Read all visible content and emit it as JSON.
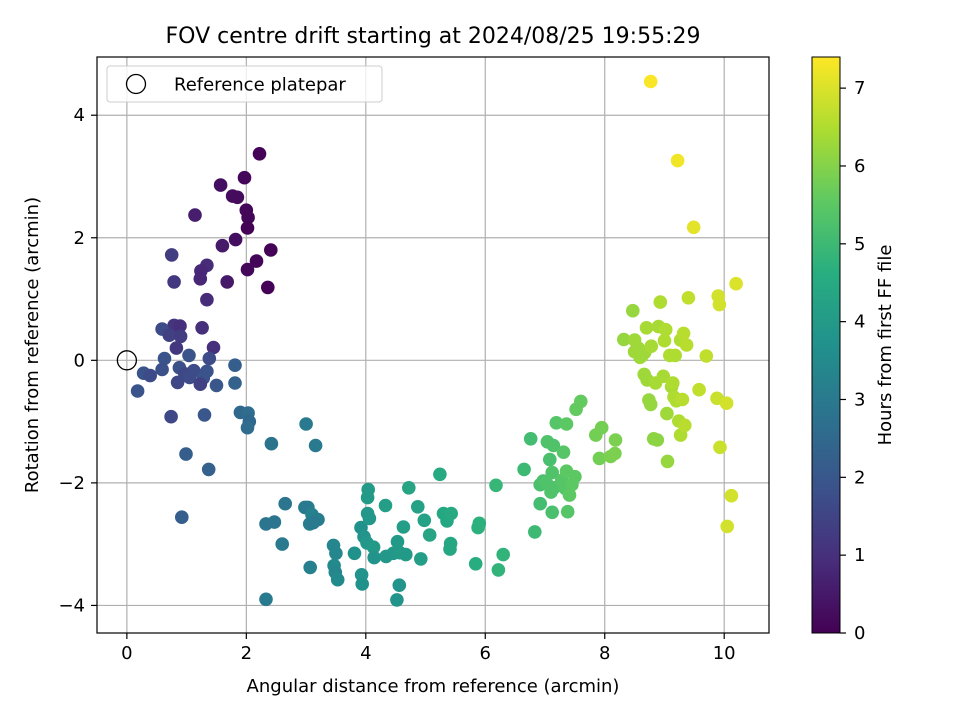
{
  "chart_data": {
    "type": "scatter",
    "title": "FOV centre drift starting at 2024/08/25 19:55:29",
    "xlabel": "Angular distance from reference (arcmin)",
    "ylabel": "Rotation from reference (arcmin)",
    "xlim": [
      -0.5,
      10.75
    ],
    "ylim": [
      -4.45,
      4.95
    ],
    "xticks": [
      "0",
      "2",
      "4",
      "6",
      "8",
      "10"
    ],
    "yticks": [
      "−4",
      "−2",
      "0",
      "2",
      "4"
    ],
    "grid": true,
    "legend": {
      "position": "top-left",
      "entries": [
        "Reference platepar"
      ]
    },
    "reference_point": {
      "x": 0,
      "y": 0
    },
    "colorbar": {
      "label": "Hours from first FF file",
      "colormap": "viridis",
      "range": [
        0,
        7.4
      ],
      "ticks": [
        "0",
        "1",
        "2",
        "3",
        "4",
        "5",
        "6",
        "7"
      ]
    },
    "points": [
      {
        "x": 2.22,
        "y": 3.37,
        "c": 0.05
      },
      {
        "x": 1.97,
        "y": 2.98,
        "c": 0.1
      },
      {
        "x": 1.57,
        "y": 2.86,
        "c": 0.3
      },
      {
        "x": 1.77,
        "y": 2.68,
        "c": 0.25
      },
      {
        "x": 1.85,
        "y": 2.66,
        "c": 0.2
      },
      {
        "x": 2.0,
        "y": 2.45,
        "c": 0.15
      },
      {
        "x": 2.03,
        "y": 2.33,
        "c": 0.1
      },
      {
        "x": 1.14,
        "y": 2.37,
        "c": 0.6
      },
      {
        "x": 2.02,
        "y": 2.16,
        "c": 0.05
      },
      {
        "x": 1.82,
        "y": 1.97,
        "c": 0.3
      },
      {
        "x": 1.6,
        "y": 1.87,
        "c": 0.5
      },
      {
        "x": 2.41,
        "y": 1.8,
        "c": 0.05
      },
      {
        "x": 0.75,
        "y": 1.72,
        "c": 1.3
      },
      {
        "x": 2.17,
        "y": 1.62,
        "c": 0.1
      },
      {
        "x": 1.34,
        "y": 1.55,
        "c": 0.9
      },
      {
        "x": 1.24,
        "y": 1.46,
        "c": 0.8
      },
      {
        "x": 2.02,
        "y": 1.48,
        "c": 0.15
      },
      {
        "x": 1.23,
        "y": 1.33,
        "c": 0.8
      },
      {
        "x": 1.68,
        "y": 1.28,
        "c": 0.5
      },
      {
        "x": 0.79,
        "y": 1.28,
        "c": 1.2
      },
      {
        "x": 2.36,
        "y": 1.19,
        "c": 0.05
      },
      {
        "x": 1.34,
        "y": 0.99,
        "c": 0.9
      },
      {
        "x": 0.79,
        "y": 0.57,
        "c": 1.1
      },
      {
        "x": 0.89,
        "y": 0.56,
        "c": 1.0
      },
      {
        "x": 1.26,
        "y": 0.53,
        "c": 1.0
      },
      {
        "x": 0.59,
        "y": 0.51,
        "c": 1.7
      },
      {
        "x": 0.71,
        "y": 0.41,
        "c": 1.4
      },
      {
        "x": 0.9,
        "y": 0.39,
        "c": 1.3
      },
      {
        "x": 0.83,
        "y": 0.2,
        "c": 1.2
      },
      {
        "x": 1.45,
        "y": 0.21,
        "c": 1.0
      },
      {
        "x": 1.04,
        "y": 0.08,
        "c": 1.9
      },
      {
        "x": 1.38,
        "y": 0.03,
        "c": 1.7
      },
      {
        "x": 0.63,
        "y": 0.03,
        "c": 1.9
      },
      {
        "x": 1.81,
        "y": -0.08,
        "c": 2.2
      },
      {
        "x": 0.88,
        "y": -0.12,
        "c": 1.8
      },
      {
        "x": 0.59,
        "y": -0.15,
        "c": 1.8
      },
      {
        "x": 1.12,
        "y": -0.17,
        "c": 1.7
      },
      {
        "x": 1.34,
        "y": -0.18,
        "c": 1.9
      },
      {
        "x": 0.28,
        "y": -0.21,
        "c": 1.9
      },
      {
        "x": 0.39,
        "y": -0.25,
        "c": 1.7
      },
      {
        "x": 0.97,
        "y": -0.22,
        "c": 1.6
      },
      {
        "x": 1.05,
        "y": -0.28,
        "c": 1.7
      },
      {
        "x": 1.28,
        "y": -0.29,
        "c": 1.9
      },
      {
        "x": 1.23,
        "y": -0.39,
        "c": 1.4
      },
      {
        "x": 0.85,
        "y": -0.36,
        "c": 1.6
      },
      {
        "x": 1.5,
        "y": -0.41,
        "c": 2.0
      },
      {
        "x": 1.81,
        "y": -0.37,
        "c": 2.3
      },
      {
        "x": 0.18,
        "y": -0.5,
        "c": 1.9
      },
      {
        "x": 1.3,
        "y": -0.89,
        "c": 2.0
      },
      {
        "x": 0.74,
        "y": -0.92,
        "c": 1.6
      },
      {
        "x": 1.9,
        "y": -0.85,
        "c": 2.5
      },
      {
        "x": 2.03,
        "y": -0.86,
        "c": 2.6
      },
      {
        "x": 2.05,
        "y": -1.0,
        "c": 2.5
      },
      {
        "x": 2.02,
        "y": -1.1,
        "c": 2.6
      },
      {
        "x": 3.0,
        "y": -1.04,
        "c": 3.0
      },
      {
        "x": 2.42,
        "y": -1.36,
        "c": 2.8
      },
      {
        "x": 3.16,
        "y": -1.39,
        "c": 3.0
      },
      {
        "x": 0.99,
        "y": -1.53,
        "c": 2.2
      },
      {
        "x": 1.37,
        "y": -1.78,
        "c": 2.3
      },
      {
        "x": 0.92,
        "y": -2.56,
        "c": 2.2
      },
      {
        "x": 2.65,
        "y": -2.34,
        "c": 2.9
      },
      {
        "x": 3.03,
        "y": -2.4,
        "c": 3.1
      },
      {
        "x": 2.98,
        "y": -2.4,
        "c": 3.0
      },
      {
        "x": 3.1,
        "y": -2.52,
        "c": 3.2
      },
      {
        "x": 3.2,
        "y": -2.6,
        "c": 3.1
      },
      {
        "x": 2.47,
        "y": -2.64,
        "c": 2.9
      },
      {
        "x": 2.33,
        "y": -2.67,
        "c": 2.9
      },
      {
        "x": 3.06,
        "y": -2.67,
        "c": 3.1
      },
      {
        "x": 3.12,
        "y": -2.65,
        "c": 3.0
      },
      {
        "x": 2.6,
        "y": -3.0,
        "c": 3.0
      },
      {
        "x": 3.07,
        "y": -3.38,
        "c": 3.2
      },
      {
        "x": 2.33,
        "y": -3.9,
        "c": 3.0
      },
      {
        "x": 3.46,
        "y": -3.02,
        "c": 3.4
      },
      {
        "x": 3.5,
        "y": -3.15,
        "c": 3.4
      },
      {
        "x": 3.47,
        "y": -3.35,
        "c": 3.5
      },
      {
        "x": 3.49,
        "y": -3.46,
        "c": 3.4
      },
      {
        "x": 3.53,
        "y": -3.58,
        "c": 3.5
      },
      {
        "x": 3.81,
        "y": -3.15,
        "c": 3.7
      },
      {
        "x": 3.92,
        "y": -2.73,
        "c": 3.7
      },
      {
        "x": 3.97,
        "y": -2.88,
        "c": 3.8
      },
      {
        "x": 4.02,
        "y": -2.98,
        "c": 3.9
      },
      {
        "x": 4.03,
        "y": -2.5,
        "c": 3.9
      },
      {
        "x": 4.04,
        "y": -2.11,
        "c": 4.0
      },
      {
        "x": 4.03,
        "y": -2.24,
        "c": 4.0
      },
      {
        "x": 4.06,
        "y": -2.58,
        "c": 3.9
      },
      {
        "x": 4.13,
        "y": -3.05,
        "c": 4.0
      },
      {
        "x": 4.14,
        "y": -3.22,
        "c": 3.8
      },
      {
        "x": 3.93,
        "y": -3.5,
        "c": 3.8
      },
      {
        "x": 3.94,
        "y": -3.65,
        "c": 3.7
      },
      {
        "x": 4.33,
        "y": -2.37,
        "c": 4.1
      },
      {
        "x": 4.34,
        "y": -3.2,
        "c": 3.9
      },
      {
        "x": 4.46,
        "y": -3.15,
        "c": 3.9
      },
      {
        "x": 4.53,
        "y": -2.96,
        "c": 4.0
      },
      {
        "x": 4.57,
        "y": -3.14,
        "c": 4.0
      },
      {
        "x": 4.56,
        "y": -3.67,
        "c": 3.8
      },
      {
        "x": 4.52,
        "y": -3.91,
        "c": 3.8
      },
      {
        "x": 4.63,
        "y": -2.72,
        "c": 4.1
      },
      {
        "x": 4.67,
        "y": -3.17,
        "c": 4.0
      },
      {
        "x": 4.72,
        "y": -2.08,
        "c": 4.3
      },
      {
        "x": 4.87,
        "y": -2.39,
        "c": 4.2
      },
      {
        "x": 4.92,
        "y": -3.24,
        "c": 4.1
      },
      {
        "x": 4.98,
        "y": -2.61,
        "c": 4.2
      },
      {
        "x": 5.07,
        "y": -2.85,
        "c": 4.3
      },
      {
        "x": 5.24,
        "y": -1.86,
        "c": 4.5
      },
      {
        "x": 5.3,
        "y": -2.5,
        "c": 4.4
      },
      {
        "x": 5.36,
        "y": -2.62,
        "c": 4.4
      },
      {
        "x": 5.43,
        "y": -2.5,
        "c": 4.5
      },
      {
        "x": 5.42,
        "y": -2.99,
        "c": 4.4
      },
      {
        "x": 5.41,
        "y": -3.08,
        "c": 4.4
      },
      {
        "x": 5.84,
        "y": -3.32,
        "c": 4.6
      },
      {
        "x": 5.9,
        "y": -2.66,
        "c": 4.7
      },
      {
        "x": 5.88,
        "y": -2.73,
        "c": 4.7
      },
      {
        "x": 6.18,
        "y": -2.04,
        "c": 4.9
      },
      {
        "x": 6.22,
        "y": -3.42,
        "c": 4.8
      },
      {
        "x": 6.3,
        "y": -3.17,
        "c": 4.8
      },
      {
        "x": 6.65,
        "y": -1.78,
        "c": 5.0
      },
      {
        "x": 6.76,
        "y": -1.28,
        "c": 5.1
      },
      {
        "x": 6.83,
        "y": -2.8,
        "c": 5.0
      },
      {
        "x": 6.92,
        "y": -2.03,
        "c": 5.2
      },
      {
        "x": 6.92,
        "y": -2.34,
        "c": 5.1
      },
      {
        "x": 6.97,
        "y": -1.97,
        "c": 5.2
      },
      {
        "x": 7.02,
        "y": -1.99,
        "c": 5.3
      },
      {
        "x": 7.04,
        "y": -1.33,
        "c": 5.3
      },
      {
        "x": 7.08,
        "y": -1.62,
        "c": 5.2
      },
      {
        "x": 7.1,
        "y": -2.15,
        "c": 5.3
      },
      {
        "x": 7.12,
        "y": -1.83,
        "c": 5.3
      },
      {
        "x": 7.12,
        "y": -2.48,
        "c": 5.2
      },
      {
        "x": 7.14,
        "y": -1.39,
        "c": 5.3
      },
      {
        "x": 7.15,
        "y": -2.08,
        "c": 5.3
      },
      {
        "x": 7.19,
        "y": -1.02,
        "c": 5.4
      },
      {
        "x": 7.28,
        "y": -1.96,
        "c": 5.4
      },
      {
        "x": 7.31,
        "y": -1.5,
        "c": 5.4
      },
      {
        "x": 7.34,
        "y": -2.09,
        "c": 5.4
      },
      {
        "x": 7.36,
        "y": -1.04,
        "c": 5.5
      },
      {
        "x": 7.36,
        "y": -1.81,
        "c": 5.5
      },
      {
        "x": 7.38,
        "y": -2.47,
        "c": 5.4
      },
      {
        "x": 7.41,
        "y": -2.2,
        "c": 5.5
      },
      {
        "x": 7.45,
        "y": -2.03,
        "c": 5.5
      },
      {
        "x": 7.5,
        "y": -1.9,
        "c": 5.5
      },
      {
        "x": 7.52,
        "y": -0.8,
        "c": 5.6
      },
      {
        "x": 7.6,
        "y": -0.67,
        "c": 5.6
      },
      {
        "x": 7.85,
        "y": -1.22,
        "c": 5.8
      },
      {
        "x": 7.91,
        "y": -1.6,
        "c": 5.8
      },
      {
        "x": 7.95,
        "y": -1.1,
        "c": 5.8
      },
      {
        "x": 8.1,
        "y": -1.57,
        "c": 5.9
      },
      {
        "x": 8.17,
        "y": -1.52,
        "c": 5.9
      },
      {
        "x": 8.18,
        "y": -1.3,
        "c": 5.9
      },
      {
        "x": 8.32,
        "y": 0.34,
        "c": 6.2
      },
      {
        "x": 8.47,
        "y": 0.81,
        "c": 6.2
      },
      {
        "x": 8.5,
        "y": 0.33,
        "c": 6.3
      },
      {
        "x": 8.5,
        "y": 0.14,
        "c": 6.3
      },
      {
        "x": 8.56,
        "y": 0.2,
        "c": 6.3
      },
      {
        "x": 8.59,
        "y": 0.05,
        "c": 6.3
      },
      {
        "x": 8.62,
        "y": 0.07,
        "c": 6.3
      },
      {
        "x": 8.66,
        "y": -0.23,
        "c": 6.3
      },
      {
        "x": 8.67,
        "y": 0.13,
        "c": 6.3
      },
      {
        "x": 8.7,
        "y": 0.53,
        "c": 6.4
      },
      {
        "x": 8.71,
        "y": -0.32,
        "c": 6.3
      },
      {
        "x": 8.74,
        "y": -0.65,
        "c": 6.2
      },
      {
        "x": 8.77,
        "y": -0.72,
        "c": 6.2
      },
      {
        "x": 8.78,
        "y": 0.23,
        "c": 6.4
      },
      {
        "x": 8.82,
        "y": -1.28,
        "c": 6.1
      },
      {
        "x": 8.85,
        "y": -0.37,
        "c": 6.4
      },
      {
        "x": 8.88,
        "y": -1.3,
        "c": 6.1
      },
      {
        "x": 8.9,
        "y": 0.55,
        "c": 6.4
      },
      {
        "x": 8.93,
        "y": 0.95,
        "c": 6.5
      },
      {
        "x": 8.98,
        "y": -0.26,
        "c": 6.4
      },
      {
        "x": 9.0,
        "y": 0.32,
        "c": 6.5
      },
      {
        "x": 9.02,
        "y": 0.5,
        "c": 6.5
      },
      {
        "x": 9.04,
        "y": -0.87,
        "c": 6.3
      },
      {
        "x": 9.05,
        "y": -1.65,
        "c": 6.2
      },
      {
        "x": 9.09,
        "y": 0.08,
        "c": 6.5
      },
      {
        "x": 9.12,
        "y": -0.43,
        "c": 6.4
      },
      {
        "x": 9.14,
        "y": -0.37,
        "c": 6.5
      },
      {
        "x": 9.16,
        "y": -0.6,
        "c": 6.5
      },
      {
        "x": 9.18,
        "y": 0.08,
        "c": 6.5
      },
      {
        "x": 9.2,
        "y": -0.66,
        "c": 6.5
      },
      {
        "x": 9.24,
        "y": -0.99,
        "c": 6.5
      },
      {
        "x": 9.27,
        "y": 0.33,
        "c": 6.5
      },
      {
        "x": 9.27,
        "y": -1.22,
        "c": 6.5
      },
      {
        "x": 9.3,
        "y": -0.64,
        "c": 6.6
      },
      {
        "x": 9.32,
        "y": 0.44,
        "c": 6.6
      },
      {
        "x": 9.34,
        "y": -1.06,
        "c": 6.6
      },
      {
        "x": 9.37,
        "y": 0.25,
        "c": 6.6
      },
      {
        "x": 9.4,
        "y": 1.02,
        "c": 6.7
      },
      {
        "x": 9.58,
        "y": -0.48,
        "c": 6.7
      },
      {
        "x": 9.7,
        "y": 0.07,
        "c": 6.7
      },
      {
        "x": 9.88,
        "y": -0.62,
        "c": 6.8
      },
      {
        "x": 9.9,
        "y": 1.05,
        "c": 6.9
      },
      {
        "x": 9.92,
        "y": 0.91,
        "c": 6.9
      },
      {
        "x": 9.93,
        "y": -1.42,
        "c": 6.8
      },
      {
        "x": 10.04,
        "y": -0.7,
        "c": 6.9
      },
      {
        "x": 10.12,
        "y": -2.21,
        "c": 6.9
      },
      {
        "x": 10.05,
        "y": -2.71,
        "c": 6.9
      },
      {
        "x": 10.2,
        "y": 1.25,
        "c": 7.0
      },
      {
        "x": 9.49,
        "y": 2.17,
        "c": 7.1
      },
      {
        "x": 9.22,
        "y": 3.26,
        "c": 7.25
      },
      {
        "x": 8.77,
        "y": 4.55,
        "c": 7.35
      }
    ]
  }
}
